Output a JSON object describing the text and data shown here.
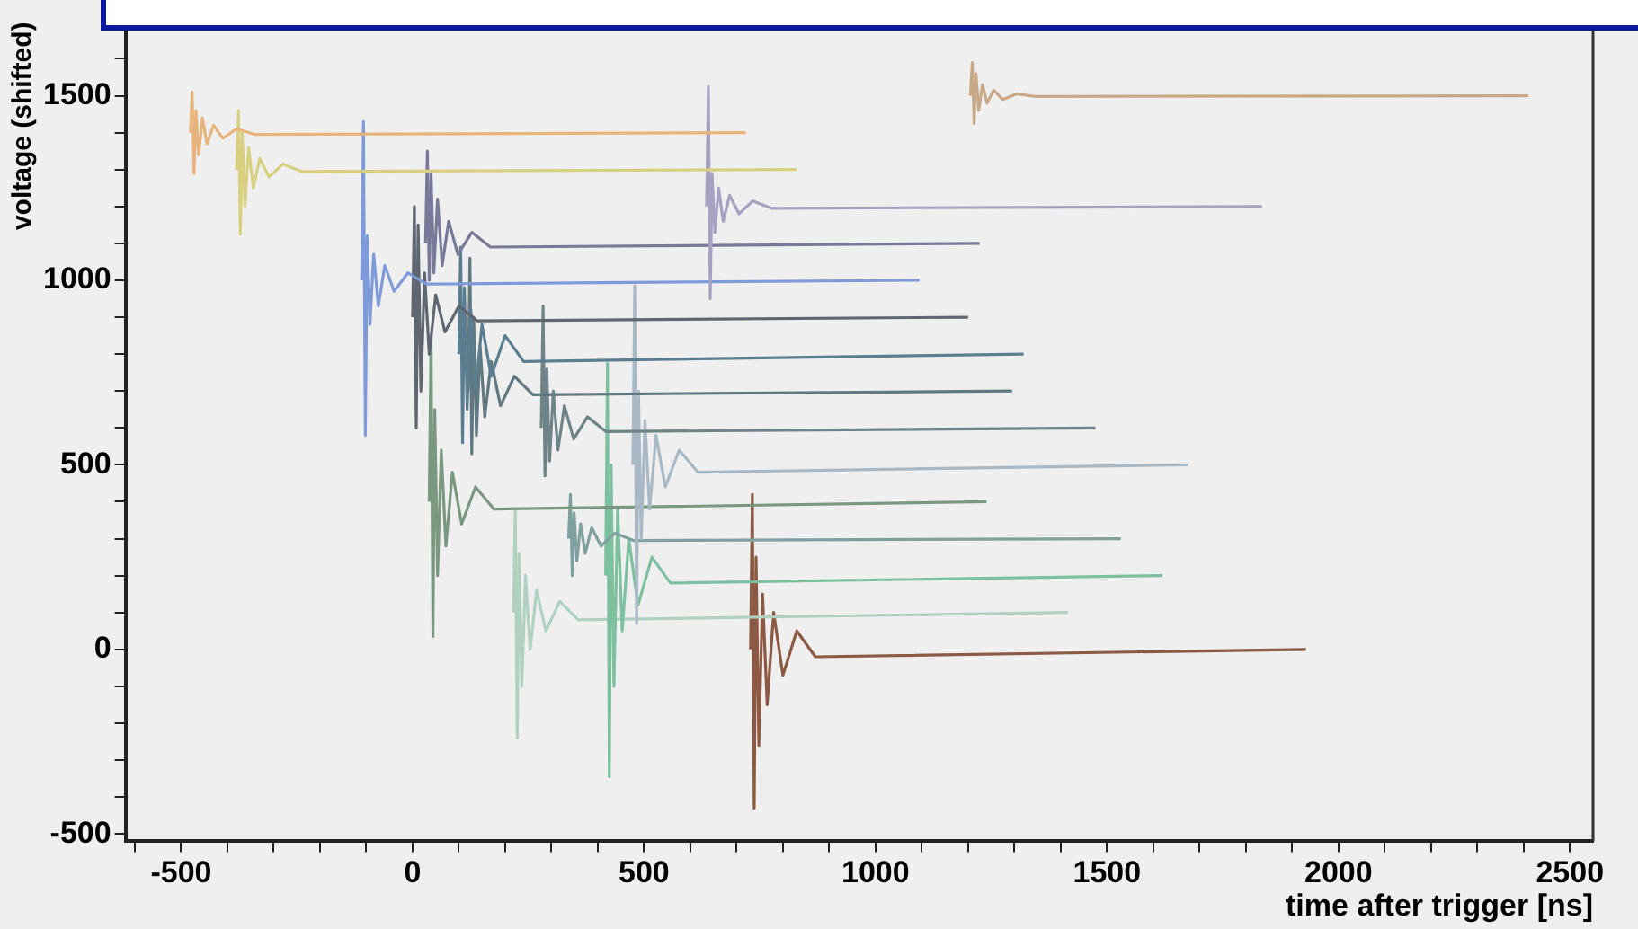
{
  "chart_data": {
    "type": "line",
    "xlabel": "time after trigger [ns]",
    "ylabel": "voltage (shifted)",
    "xlim": [
      -620,
      2550
    ],
    "ylim": [
      -520,
      1700
    ],
    "xticks": [
      {
        "value": -600,
        "label": null
      },
      -500,
      {
        "value": -400,
        "label": null
      },
      {
        "value": -300,
        "label": null
      },
      {
        "value": -200,
        "label": null
      },
      {
        "value": -100,
        "label": null
      },
      0,
      {
        "value": 100,
        "label": null
      },
      {
        "value": 200,
        "label": null
      },
      {
        "value": 300,
        "label": null
      },
      {
        "value": 400,
        "label": null
      },
      500,
      {
        "value": 600,
        "label": null
      },
      {
        "value": 700,
        "label": null
      },
      {
        "value": 800,
        "label": null
      },
      {
        "value": 900,
        "label": null
      },
      1000,
      {
        "value": 1100,
        "label": null
      },
      {
        "value": 1200,
        "label": null
      },
      {
        "value": 1300,
        "label": null
      },
      {
        "value": 1400,
        "label": null
      },
      1500,
      {
        "value": 1600,
        "label": null
      },
      {
        "value": 1700,
        "label": null
      },
      {
        "value": 1800,
        "label": null
      },
      {
        "value": 1900,
        "label": null
      },
      2000,
      {
        "value": 2100,
        "label": null
      },
      {
        "value": 2200,
        "label": null
      },
      {
        "value": 2300,
        "label": null
      },
      {
        "value": 2400,
        "label": null
      },
      2500
    ],
    "yticks": [
      -500,
      {
        "value": -400,
        "label": null
      },
      {
        "value": -300,
        "label": null
      },
      {
        "value": -200,
        "label": null
      },
      {
        "value": -100,
        "label": null
      },
      0,
      {
        "value": 100,
        "label": null
      },
      {
        "value": 200,
        "label": null
      },
      {
        "value": 300,
        "label": null
      },
      {
        "value": 400,
        "label": null
      },
      500,
      {
        "value": 600,
        "label": null
      },
      {
        "value": 700,
        "label": null
      },
      {
        "value": 800,
        "label": null
      },
      {
        "value": 900,
        "label": null
      },
      1000,
      {
        "value": 1100,
        "label": null
      },
      {
        "value": 1200,
        "label": null
      },
      {
        "value": 1300,
        "label": null
      },
      {
        "value": 1400,
        "label": null
      },
      1500,
      {
        "value": 1600,
        "label": null
      }
    ],
    "grid": false,
    "legend": false,
    "marker": "none",
    "line_style": "solid",
    "series": [
      {
        "color": "#e6b47c",
        "x": [
          -480,
          -476,
          -472,
          -468,
          -462,
          -454,
          -444,
          -430,
          -410,
          -380,
          -340,
          720
        ],
        "values": [
          1400,
          1510,
          1290,
          1460,
          1340,
          1440,
          1370,
          1420,
          1385,
          1410,
          1395,
          1400
        ]
      },
      {
        "color": "#d8d080",
        "x": [
          -380,
          -376,
          -372,
          -368,
          -362,
          -354,
          -344,
          -330,
          -310,
          -280,
          -240,
          830
        ],
        "values": [
          1300,
          1460,
          1125,
          1400,
          1200,
          1360,
          1250,
          1330,
          1280,
          1315,
          1295,
          1300
        ]
      },
      {
        "color": "#c8a888",
        "x": [
          1205,
          1209,
          1213,
          1217,
          1223,
          1231,
          1241,
          1255,
          1275,
          1305,
          1345,
          2410
        ],
        "values": [
          1500,
          1590,
          1425,
          1560,
          1460,
          1530,
          1480,
          1515,
          1490,
          1505,
          1498,
          1500
        ]
      },
      {
        "color": "#a8a0c0",
        "x": [
          635,
          639,
          643,
          647,
          653,
          661,
          671,
          685,
          705,
          735,
          775,
          1835
        ],
        "values": [
          1200,
          1525,
          950,
          1290,
          1130,
          1250,
          1160,
          1230,
          1180,
          1215,
          1195,
          1200
        ]
      },
      {
        "color": "#787898",
        "x": [
          28,
          32,
          36,
          40,
          46,
          54,
          64,
          78,
          98,
          128,
          168,
          1225
        ],
        "values": [
          1100,
          1350,
          1000,
          1290,
          1020,
          1220,
          1040,
          1160,
          1070,
          1130,
          1090,
          1100
        ]
      },
      {
        "color": "#7f9ad8",
        "x": [
          -110,
          -106,
          -102,
          -98,
          -92,
          -84,
          -74,
          -60,
          -40,
          -10,
          30,
          1095
        ],
        "values": [
          1000,
          1430,
          580,
          1120,
          880,
          1070,
          930,
          1040,
          970,
          1020,
          990,
          1000
        ]
      },
      {
        "color": "#5f6670",
        "x": [
          0,
          4,
          8,
          12,
          18,
          26,
          36,
          50,
          70,
          100,
          140,
          1200
        ],
        "values": [
          900,
          1200,
          600,
          1150,
          700,
          1020,
          800,
          960,
          860,
          930,
          890,
          900
        ]
      },
      {
        "color": "#5a7e90",
        "x": [
          100,
          104,
          108,
          112,
          118,
          126,
          136,
          150,
          170,
          200,
          240,
          1320
        ],
        "values": [
          800,
          1090,
          560,
          980,
          650,
          920,
          700,
          880,
          740,
          850,
          780,
          800
        ]
      },
      {
        "color": "#607880",
        "x": [
          120,
          124,
          128,
          132,
          138,
          146,
          156,
          170,
          190,
          220,
          260,
          1295
        ],
        "values": [
          700,
          1060,
          530,
          900,
          580,
          820,
          630,
          780,
          660,
          740,
          690,
          700
        ]
      },
      {
        "color": "#6e8488",
        "x": [
          278,
          282,
          286,
          290,
          296,
          304,
          314,
          328,
          348,
          378,
          418,
          1475
        ],
        "values": [
          600,
          930,
          470,
          760,
          510,
          700,
          540,
          660,
          570,
          630,
          590,
          600
        ]
      },
      {
        "color": "#a8b8c4",
        "x": [
          476,
          480,
          484,
          488,
          494,
          502,
          512,
          526,
          546,
          576,
          616,
          1675
        ],
        "values": [
          500,
          985,
          70,
          700,
          300,
          620,
          380,
          580,
          440,
          540,
          480,
          500
        ]
      },
      {
        "color": "#7a9880",
        "x": [
          36,
          40,
          44,
          48,
          54,
          62,
          72,
          86,
          106,
          136,
          176,
          1240
        ],
        "values": [
          400,
          850,
          35,
          650,
          200,
          540,
          280,
          480,
          340,
          440,
          380,
          400
        ]
      },
      {
        "color": "#80a0a0",
        "x": [
          337,
          341,
          345,
          349,
          355,
          363,
          373,
          387,
          407,
          437,
          477,
          1530
        ],
        "values": [
          300,
          420,
          200,
          370,
          240,
          340,
          260,
          330,
          280,
          315,
          295,
          300
        ]
      },
      {
        "color": "#7cc0a0",
        "x": [
          417,
          421,
          425,
          429,
          435,
          443,
          453,
          467,
          487,
          517,
          557,
          1620
        ],
        "values": [
          200,
          775,
          -345,
          500,
          -100,
          380,
          50,
          300,
          120,
          250,
          180,
          200
        ]
      },
      {
        "color": "#b0d0c0",
        "x": [
          218,
          222,
          226,
          230,
          236,
          244,
          254,
          268,
          288,
          318,
          358,
          1415
        ],
        "values": [
          100,
          380,
          -240,
          260,
          -100,
          200,
          0,
          160,
          50,
          130,
          80,
          100
        ]
      },
      {
        "color": "#8c5a44",
        "x": [
          730,
          734,
          738,
          742,
          748,
          756,
          766,
          780,
          800,
          830,
          870,
          1930
        ],
        "values": [
          0,
          420,
          -430,
          250,
          -260,
          150,
          -150,
          100,
          -70,
          50,
          -20,
          0
        ]
      }
    ]
  }
}
